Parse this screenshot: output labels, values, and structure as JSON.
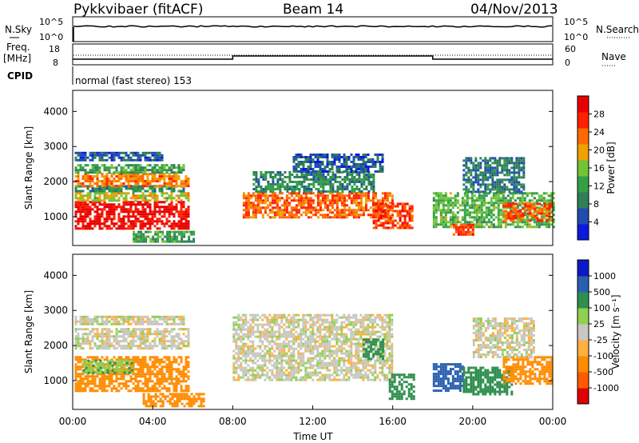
{
  "header": {
    "station": "Pykkvibaer (fitACF)",
    "beam": "Beam 14",
    "date": "04/Nov/2013"
  },
  "strip": {
    "nsky_label": "N.Sky",
    "nsearch_label": "N.Search",
    "nsky_ticks": [
      "10^5",
      "10^0"
    ],
    "nsearch_ticks": [
      "10^5",
      "10^0"
    ],
    "freq_label": "Freq.",
    "freq_unit": "[MHz]",
    "freq_ticks": [
      "18",
      "8"
    ],
    "nave_label": "Nave",
    "nave_ticks": [
      "60",
      "0"
    ],
    "cpid_label": "CPID",
    "cpid_text": "normal (fast stereo) 153"
  },
  "colors": {
    "power": [
      "#0a1adf",
      "#1f4db0",
      "#2f7f57",
      "#33a046",
      "#70c435",
      "#f0a000",
      "#ff6a00",
      "#ff2000",
      "#e80000"
    ],
    "velocity": [
      "#e00000",
      "#ff5a00",
      "#ff8c00",
      "#ffb040",
      "#c8c8c0",
      "#90d050",
      "#2f8f4f",
      "#2a5fb0",
      "#0b1ac8"
    ],
    "ground_scatter": "#c8c8c0"
  },
  "chart_data": [
    {
      "type": "heatmap",
      "name": "power-panel",
      "ylabel": "Slant Range [km]",
      "ylim": [
        180,
        4600
      ],
      "yticks": [
        "1000",
        "2000",
        "3000",
        "4000"
      ],
      "xlim_hours": [
        0,
        24
      ],
      "colorbar": {
        "title": "Power [dB]",
        "ticks": [
          "4",
          "8",
          "12",
          "16",
          "20",
          "24",
          "28"
        ],
        "range": [
          0,
          32
        ]
      },
      "patches": [
        {
          "t": [
            0.1,
            5.8
          ],
          "r": [
            650,
            1450
          ],
          "v": 30
        },
        {
          "t": [
            0.1,
            5.8
          ],
          "r": [
            1450,
            1700
          ],
          "v": 18
        },
        {
          "t": [
            0.1,
            5.5
          ],
          "r": [
            1700,
            1900
          ],
          "v": 10
        },
        {
          "t": [
            0.1,
            5.8
          ],
          "r": [
            1900,
            2250
          ],
          "v": 22
        },
        {
          "t": [
            0.1,
            5.5
          ],
          "r": [
            2250,
            2500
          ],
          "v": 12
        },
        {
          "t": [
            0.1,
            4.5
          ],
          "r": [
            2600,
            2850
          ],
          "v": 6
        },
        {
          "t": [
            3.0,
            6.0
          ],
          "r": [
            300,
            600
          ],
          "v": 12
        },
        {
          "t": [
            8.5,
            16.0
          ],
          "r": [
            1000,
            1700
          ],
          "v": 24
        },
        {
          "t": [
            9.0,
            15.0
          ],
          "r": [
            1700,
            2300
          ],
          "v": 10
        },
        {
          "t": [
            11.0,
            15.5
          ],
          "r": [
            2300,
            2800
          ],
          "v": 6
        },
        {
          "t": [
            15.0,
            17.0
          ],
          "r": [
            700,
            1400
          ],
          "v": 26
        },
        {
          "t": [
            18.0,
            24.0
          ],
          "r": [
            700,
            1700
          ],
          "v": 14
        },
        {
          "t": [
            19.5,
            22.5
          ],
          "r": [
            1700,
            2700
          ],
          "v": 8
        },
        {
          "t": [
            21.5,
            24.0
          ],
          "r": [
            900,
            1400
          ],
          "v": 24
        },
        {
          "t": [
            19.0,
            20.0
          ],
          "r": [
            500,
            800
          ],
          "v": 26
        }
      ]
    },
    {
      "type": "heatmap",
      "name": "velocity-panel",
      "ylabel": "Slant Range [km]",
      "ylim": [
        180,
        4600
      ],
      "yticks": [
        "1000",
        "2000",
        "3000",
        "4000"
      ],
      "xlim_hours": [
        0,
        24
      ],
      "xticks": [
        "00:00",
        "04:00",
        "08:00",
        "12:00",
        "16:00",
        "20:00",
        "00:00"
      ],
      "xlabel": "Time UT",
      "colorbar": {
        "title": "Velocity [m s⁻¹]",
        "ticks": [
          "-1000",
          "-500",
          "-100",
          "-25",
          "25",
          "100",
          "500",
          "1000"
        ]
      },
      "patches": [
        {
          "t": [
            0.1,
            5.8
          ],
          "r": [
            700,
            1700
          ],
          "v": -150
        },
        {
          "t": [
            0.5,
            3.0
          ],
          "r": [
            1200,
            1600
          ],
          "v": 80
        },
        {
          "t": [
            0.1,
            5.8
          ],
          "r": [
            1900,
            2500
          ],
          "v": 0
        },
        {
          "t": [
            0.1,
            5.5
          ],
          "r": [
            2600,
            2850
          ],
          "v": 0
        },
        {
          "t": [
            3.5,
            6.5
          ],
          "r": [
            300,
            650
          ],
          "v": -200
        },
        {
          "t": [
            8.0,
            16.0
          ],
          "r": [
            1000,
            2900
          ],
          "v": 0
        },
        {
          "t": [
            14.5,
            15.5
          ],
          "r": [
            1600,
            2200
          ],
          "v": 200
        },
        {
          "t": [
            15.8,
            17.0
          ],
          "r": [
            500,
            1200
          ],
          "v": 150
        },
        {
          "t": [
            18.0,
            19.5
          ],
          "r": [
            700,
            1500
          ],
          "v": 900
        },
        {
          "t": [
            19.5,
            22.0
          ],
          "r": [
            600,
            1400
          ],
          "v": 300
        },
        {
          "t": [
            21.5,
            24.0
          ],
          "r": [
            900,
            1700
          ],
          "v": -300
        },
        {
          "t": [
            20.0,
            23.0
          ],
          "r": [
            1700,
            2800
          ],
          "v": 0
        }
      ]
    }
  ]
}
